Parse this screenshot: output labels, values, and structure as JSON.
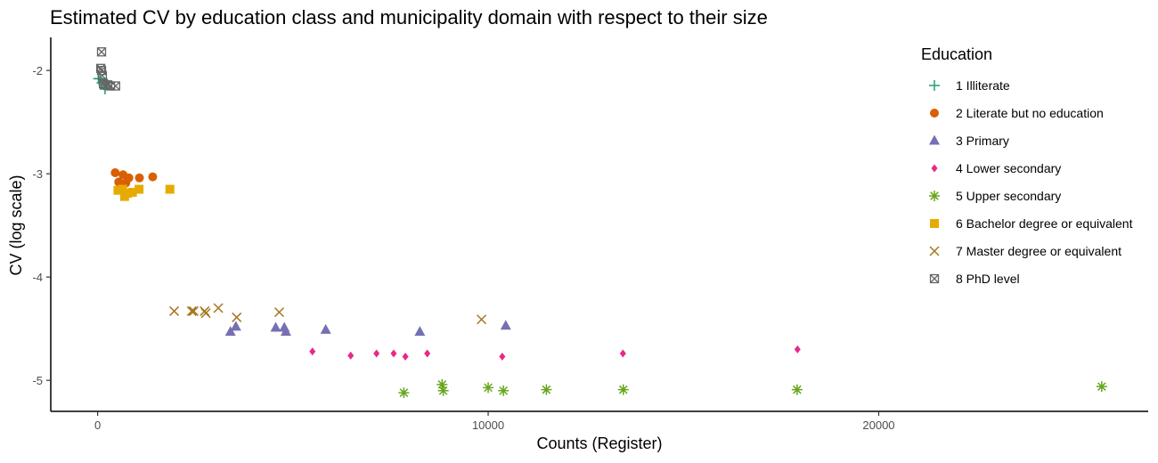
{
  "chart_data": {
    "type": "scatter",
    "title": "Estimated CV by education class and municipality domain with respect to their size",
    "xlabel": "Counts (Register)",
    "ylabel": "CV (log scale)",
    "xlim": [
      -1200,
      26900
    ],
    "ylim": [
      -5.3,
      -1.68
    ],
    "x_ticks": [
      0,
      10000,
      20000
    ],
    "x_tick_labels": [
      "0",
      "10000",
      "20000"
    ],
    "y_ticks": [
      -2,
      -3,
      -4,
      -5
    ],
    "y_tick_labels": [
      "-2",
      "-3",
      "-4",
      "-5"
    ],
    "grid": false,
    "legend": {
      "title": "Education",
      "position": "right"
    },
    "series": [
      {
        "name": "1 Illiterate",
        "shape": "plus",
        "color": "#1B9E77",
        "points": [
          [
            20,
            -2.08
          ],
          [
            60,
            -2.08
          ],
          [
            110,
            -2.12
          ],
          [
            160,
            -2.14
          ],
          [
            190,
            -2.18
          ],
          [
            230,
            -2.12
          ]
        ]
      },
      {
        "name": "2 Literate but no education",
        "shape": "circle",
        "color": "#D95F02",
        "points": [
          [
            450,
            -2.99
          ],
          [
            540,
            -3.08
          ],
          [
            650,
            -3.01
          ],
          [
            720,
            -3.09
          ],
          [
            800,
            -3.04
          ],
          [
            1070,
            -3.04
          ],
          [
            1410,
            -3.03
          ]
        ]
      },
      {
        "name": "3 Primary",
        "shape": "triangle",
        "color": "#7570B3",
        "points": [
          [
            3400,
            -4.53
          ],
          [
            3540,
            -4.48
          ],
          [
            4560,
            -4.49
          ],
          [
            4780,
            -4.49
          ],
          [
            4820,
            -4.53
          ],
          [
            5840,
            -4.51
          ],
          [
            8250,
            -4.53
          ],
          [
            10450,
            -4.47
          ]
        ]
      },
      {
        "name": "4 Lower secondary",
        "shape": "diamond",
        "color": "#E7298A",
        "points": [
          [
            5500,
            -4.72
          ],
          [
            6480,
            -4.76
          ],
          [
            7140,
            -4.74
          ],
          [
            7580,
            -4.74
          ],
          [
            7880,
            -4.77
          ],
          [
            8440,
            -4.74
          ],
          [
            10360,
            -4.77
          ],
          [
            13450,
            -4.74
          ],
          [
            17920,
            -4.7
          ]
        ]
      },
      {
        "name": "5 Upper secondary",
        "shape": "asterisk",
        "color": "#66A61E",
        "points": [
          [
            7840,
            -5.12
          ],
          [
            8820,
            -5.04
          ],
          [
            8850,
            -5.1
          ],
          [
            10000,
            -5.07
          ],
          [
            10390,
            -5.1
          ],
          [
            11490,
            -5.09
          ],
          [
            13460,
            -5.09
          ],
          [
            17910,
            -5.09
          ],
          [
            25710,
            -5.06
          ]
        ]
      },
      {
        "name": "6 Bachelor degree or equivalent",
        "shape": "square",
        "color": "#E6AB02",
        "points": [
          [
            520,
            -3.16
          ],
          [
            640,
            -3.15
          ],
          [
            690,
            -3.22
          ],
          [
            760,
            -3.19
          ],
          [
            890,
            -3.18
          ],
          [
            1060,
            -3.15
          ],
          [
            1850,
            -3.15
          ]
        ]
      },
      {
        "name": "7 Master degree or equivalent",
        "shape": "x",
        "color": "#A6761D",
        "points": [
          [
            1960,
            -4.33
          ],
          [
            2410,
            -4.33
          ],
          [
            2460,
            -4.33
          ],
          [
            2740,
            -4.33
          ],
          [
            2770,
            -4.35
          ],
          [
            3090,
            -4.3
          ],
          [
            3560,
            -4.39
          ],
          [
            4650,
            -4.34
          ],
          [
            9830,
            -4.41
          ]
        ]
      },
      {
        "name": "8 PhD level",
        "shape": "boxx",
        "color": "#666666",
        "points": [
          [
            100,
            -1.82
          ],
          [
            80,
            -1.98
          ],
          [
            100,
            -2.0
          ],
          [
            120,
            -2.05
          ],
          [
            150,
            -2.13
          ],
          [
            200,
            -2.14
          ],
          [
            260,
            -2.14
          ],
          [
            330,
            -2.15
          ],
          [
            460,
            -2.15
          ]
        ]
      }
    ]
  }
}
